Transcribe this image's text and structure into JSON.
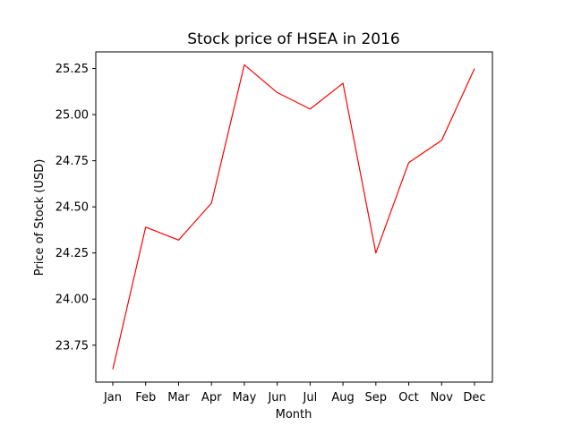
{
  "chart_data": {
    "type": "line",
    "title": "Stock price of HSEA in 2016",
    "xlabel": "Month",
    "ylabel": "Price of Stock (USD)",
    "categories": [
      "Jan",
      "Feb",
      "Mar",
      "Apr",
      "May",
      "Jun",
      "Jul",
      "Aug",
      "Sep",
      "Oct",
      "Nov",
      "Dec"
    ],
    "series": [
      {
        "values": [
          23.62,
          24.39,
          24.32,
          24.52,
          25.27,
          25.12,
          25.03,
          25.17,
          24.25,
          24.74,
          24.86,
          25.25
        ],
        "color": "#ff0000"
      }
    ],
    "yticks": [
      23.75,
      24.0,
      24.25,
      24.5,
      24.75,
      25.0,
      25.25
    ],
    "ytick_labels": [
      "23.75",
      "24.00",
      "24.25",
      "24.50",
      "24.75",
      "25.00",
      "25.25"
    ],
    "ylim": [
      23.55,
      25.34
    ],
    "grid": false,
    "legend": false
  }
}
